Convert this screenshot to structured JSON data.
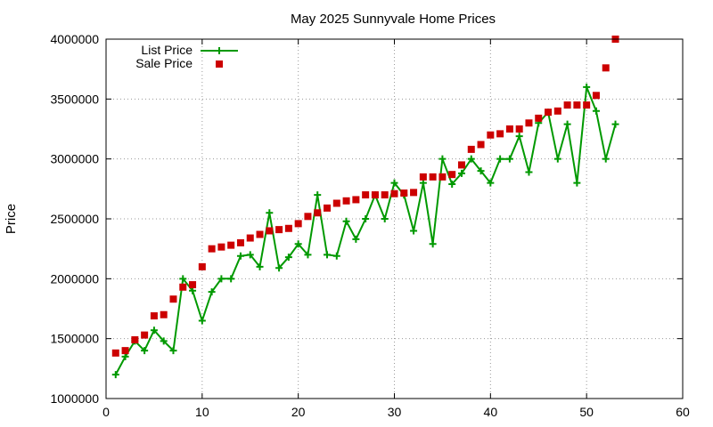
{
  "chart_data": {
    "type": "line",
    "title": "May 2025 Sunnyvale Home Prices",
    "xlabel": "",
    "ylabel": "Price",
    "xlim": [
      0,
      60
    ],
    "ylim": [
      1000000,
      4000000
    ],
    "x_ticks": [
      "0",
      "10",
      "20",
      "30",
      "40",
      "50",
      "60"
    ],
    "y_ticks": [
      "1000000",
      "1500000",
      "2000000",
      "2500000",
      "3000000",
      "3500000",
      "4000000"
    ],
    "grid": true,
    "legend_position": "top-left",
    "series": [
      {
        "name": "List Price",
        "style": "line-with-plus-markers",
        "color": "#009900",
        "x": [
          1,
          2,
          3,
          4,
          5,
          6,
          7,
          8,
          9,
          10,
          11,
          12,
          13,
          14,
          15,
          16,
          17,
          18,
          19,
          20,
          21,
          22,
          23,
          24,
          25,
          26,
          27,
          28,
          29,
          30,
          31,
          32,
          33,
          34,
          35,
          36,
          37,
          38,
          39,
          40,
          41,
          42,
          43,
          44,
          45,
          46,
          47,
          48,
          49,
          50,
          51,
          52,
          53
        ],
        "y": [
          1200000,
          1350000,
          1480000,
          1400000,
          1570000,
          1480000,
          1400000,
          2000000,
          1900000,
          1650000,
          1890000,
          2000000,
          2000000,
          2190000,
          2200000,
          2100000,
          2550000,
          2090000,
          2180000,
          2290000,
          2200000,
          2700000,
          2200000,
          2190000,
          2480000,
          2330000,
          2500000,
          2700000,
          2500000,
          2800000,
          2700000,
          2400000,
          2800000,
          2290000,
          3000000,
          2790000,
          2880000,
          3000000,
          2900000,
          2800000,
          3000000,
          3000000,
          3190000,
          2890000,
          3300000,
          3390000,
          3000000,
          3290000,
          2800000,
          3600000,
          3400000,
          3000000,
          3290000
        ]
      },
      {
        "name": "Sale Price",
        "style": "square-markers",
        "color": "#cc0000",
        "x": [
          1,
          2,
          3,
          4,
          5,
          6,
          7,
          8,
          9,
          10,
          11,
          12,
          13,
          14,
          15,
          16,
          17,
          18,
          19,
          20,
          21,
          22,
          23,
          24,
          25,
          26,
          27,
          28,
          29,
          30,
          31,
          32,
          33,
          34,
          35,
          36,
          37,
          38,
          39,
          40,
          41,
          42,
          43,
          44,
          45,
          46,
          47,
          48,
          49,
          50,
          51,
          52,
          53
        ],
        "y": [
          1380000,
          1400000,
          1490000,
          1530000,
          1690000,
          1700000,
          1830000,
          1930000,
          1950000,
          2100000,
          2250000,
          2265000,
          2280000,
          2300000,
          2340000,
          2370000,
          2400000,
          2410000,
          2420000,
          2460000,
          2520000,
          2550000,
          2590000,
          2630000,
          2650000,
          2660000,
          2700000,
          2700000,
          2700000,
          2710000,
          2715000,
          2720000,
          2850000,
          2850000,
          2850000,
          2870000,
          2950000,
          3080000,
          3120000,
          3200000,
          3210000,
          3250000,
          3250000,
          3300000,
          3340000,
          3390000,
          3400000,
          3450000,
          3450000,
          3450000,
          3530000,
          3760000,
          4000000
        ]
      }
    ]
  }
}
